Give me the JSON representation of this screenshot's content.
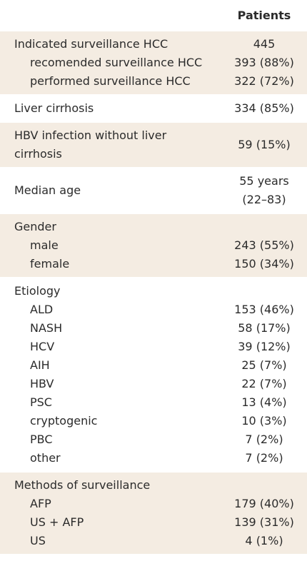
{
  "header": {
    "column": "Patients"
  },
  "groups": [
    {
      "heading": {
        "label": "Indicated surveillance HCC",
        "value": "445"
      },
      "items": [
        {
          "label": "recomended surveillance HCC",
          "value": "393 (88%)"
        },
        {
          "label": "performed surveillance HCC",
          "value": "322 (72%)"
        }
      ]
    },
    {
      "heading": {
        "label": "Liver cirrhosis",
        "value": "334 (85%)"
      },
      "items": []
    },
    {
      "heading": {
        "label": [
          "HBV infection without liver",
          "cirrhosis"
        ],
        "value": "59 (15%)"
      },
      "items": []
    },
    {
      "heading": {
        "label": "Median age",
        "value": [
          "55 years",
          "(22–83)"
        ]
      },
      "items": []
    },
    {
      "heading": {
        "label": "Gender"
      },
      "items": [
        {
          "label": "male",
          "value": "243 (55%)"
        },
        {
          "label": "female",
          "value": "150 (34%)"
        }
      ]
    },
    {
      "heading": {
        "label": "Etiology"
      },
      "items": [
        {
          "label": "ALD",
          "value": "153 (46%)"
        },
        {
          "label": "NASH",
          "value": "58 (17%)"
        },
        {
          "label": "HCV",
          "value": "39 (12%)"
        },
        {
          "label": "AIH",
          "value": "25 (7%)"
        },
        {
          "label": "HBV",
          "value": "22 (7%)"
        },
        {
          "label": "PSC",
          "value": "13 (4%)"
        },
        {
          "label": "cryptogenic",
          "value": "10 (3%)"
        },
        {
          "label": "PBC",
          "value": "7 (2%)"
        },
        {
          "label": "other",
          "value": "7 (2%)"
        }
      ]
    },
    {
      "heading": {
        "label": "Methods of surveillance"
      },
      "items": [
        {
          "label": "AFP",
          "value": "179 (40%)"
        },
        {
          "label": "US + AFP",
          "value": "139 (31%)"
        },
        {
          "label": "US",
          "value": "4 (1%)"
        }
      ]
    }
  ]
}
